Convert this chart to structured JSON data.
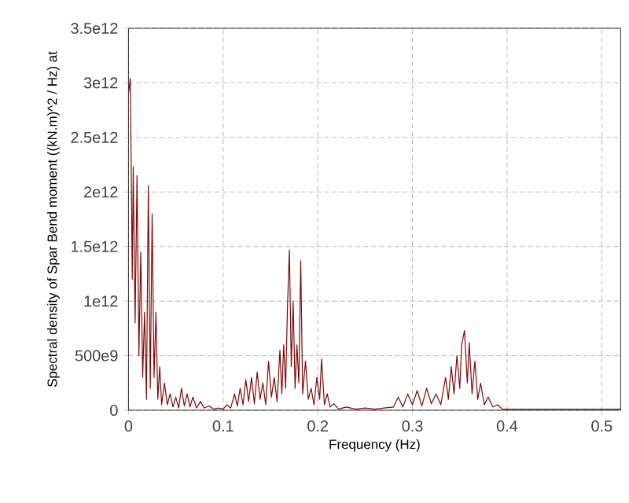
{
  "chart_data": {
    "type": "line",
    "xlabel": "Frequency (Hz)",
    "ylabel": "Spectral density of Spar Bend moment ((kN.m)^2 / Hz) at",
    "xlim": [
      0,
      0.52
    ],
    "xticks": [
      0,
      0.1,
      0.2,
      0.3,
      0.4,
      0.5
    ],
    "ylim": [
      0,
      3500000000000.0
    ],
    "yticks": [
      0,
      {
        "value": 500000000000.0,
        "label": "500e9"
      },
      {
        "value": 1000000000000.0,
        "label": "1e12"
      },
      {
        "value": 1500000000000.0,
        "label": "1.5e12"
      },
      {
        "value": 2000000000000.0,
        "label": "2e12"
      },
      {
        "value": 2500000000000.0,
        "label": "2.5e12"
      },
      {
        "value": 3000000000000.0,
        "label": "3e12"
      },
      {
        "value": 3500000000000.0,
        "label": "3.5e12"
      }
    ],
    "grid": true,
    "marker": "none",
    "line_style": "solid",
    "series": [
      {
        "color": "#7b0a0a",
        "x": [
          0,
          0.002,
          0.004,
          0.005,
          0.007,
          0.009,
          0.011,
          0.013,
          0.015,
          0.017,
          0.019,
          0.021,
          0.023,
          0.025,
          0.027,
          0.029,
          0.031,
          0.033,
          0.035,
          0.038,
          0.041,
          0.044,
          0.047,
          0.05,
          0.053,
          0.056,
          0.059,
          0.062,
          0.065,
          0.068,
          0.072,
          0.076,
          0.08,
          0.085,
          0.09,
          0.095,
          0.1,
          0.104,
          0.108,
          0.112,
          0.115,
          0.118,
          0.121,
          0.124,
          0.127,
          0.13,
          0.133,
          0.136,
          0.139,
          0.142,
          0.145,
          0.148,
          0.151,
          0.154,
          0.157,
          0.16,
          0.162,
          0.164,
          0.166,
          0.168,
          0.17,
          0.172,
          0.174,
          0.176,
          0.178,
          0.18,
          0.182,
          0.184,
          0.187,
          0.19,
          0.193,
          0.196,
          0.199,
          0.202,
          0.204,
          0.207,
          0.21,
          0.213,
          0.217,
          0.222,
          0.23,
          0.24,
          0.25,
          0.26,
          0.27,
          0.28,
          0.285,
          0.29,
          0.295,
          0.3,
          0.305,
          0.31,
          0.315,
          0.32,
          0.325,
          0.33,
          0.335,
          0.338,
          0.341,
          0.344,
          0.347,
          0.35,
          0.352,
          0.355,
          0.358,
          0.36,
          0.363,
          0.366,
          0.369,
          0.372,
          0.376,
          0.38,
          0.385,
          0.39,
          0.395,
          0.4,
          0.42,
          0.44,
          0.46,
          0.48,
          0.5,
          0.52
        ],
        "values": [
          2900000000000.0,
          3040000000000.0,
          1200000000000.0,
          2230000000000.0,
          800000000000.0,
          2150000000000.0,
          500000000000.0,
          1450000000000.0,
          300000000000.0,
          900000000000.0,
          100000000000.0,
          2060000000000.0,
          200000000000.0,
          1800000000000.0,
          300000000000.0,
          900000000000.0,
          100000000000.0,
          400000000000.0,
          50000000000.0,
          250000000000.0,
          50000000000.0,
          150000000000.0,
          30000000000.0,
          120000000000.0,
          20000000000.0,
          200000000000.0,
          40000000000.0,
          150000000000.0,
          30000000000.0,
          120000000000.0,
          20000000000.0,
          80000000000.0,
          20000000000.0,
          40000000000.0,
          10000000000.0,
          20000000000.0,
          10000000000.0,
          50000000000.0,
          20000000000.0,
          150000000000.0,
          40000000000.0,
          200000000000.0,
          50000000000.0,
          280000000000.0,
          80000000000.0,
          300000000000.0,
          60000000000.0,
          350000000000.0,
          100000000000.0,
          250000000000.0,
          50000000000.0,
          450000000000.0,
          120000000000.0,
          300000000000.0,
          80000000000.0,
          550000000000.0,
          150000000000.0,
          600000000000.0,
          200000000000.0,
          950000000000.0,
          1470000000000.0,
          400000000000.0,
          1000000000000.0,
          200000000000.0,
          600000000000.0,
          250000000000.0,
          1370000000000.0,
          150000000000.0,
          450000000000.0,
          100000000000.0,
          200000000000.0,
          50000000000.0,
          300000000000.0,
          100000000000.0,
          470000000000.0,
          50000000000.0,
          150000000000.0,
          30000000000.0,
          60000000000.0,
          10000000000.0,
          30000000000.0,
          10000000000.0,
          20000000000.0,
          10000000000.0,
          20000000000.0,
          30000000000.0,
          120000000000.0,
          30000000000.0,
          150000000000.0,
          50000000000.0,
          180000000000.0,
          40000000000.0,
          200000000000.0,
          60000000000.0,
          150000000000.0,
          50000000000.0,
          300000000000.0,
          100000000000.0,
          400000000000.0,
          150000000000.0,
          500000000000.0,
          200000000000.0,
          600000000000.0,
          730000000000.0,
          250000000000.0,
          620000000000.0,
          150000000000.0,
          450000000000.0,
          100000000000.0,
          250000000000.0,
          50000000000.0,
          120000000000.0,
          30000000000.0,
          50000000000.0,
          10000000000.0,
          10000000000.0,
          10000000000.0,
          10000000000.0,
          10000000000.0,
          10000000000.0,
          10000000000.0,
          10000000000.0
        ]
      }
    ]
  }
}
